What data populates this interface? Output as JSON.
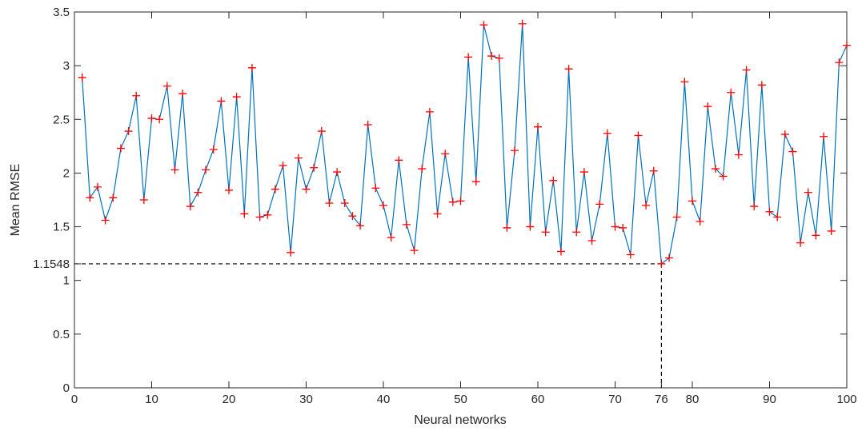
{
  "chart_data": {
    "type": "line",
    "xlabel": "Neural networks",
    "ylabel": "Mean RMSE",
    "xlim": [
      0,
      100
    ],
    "ylim": [
      0,
      3.5
    ],
    "x_ticks": [
      0,
      10,
      20,
      30,
      40,
      50,
      60,
      70,
      76,
      80,
      90,
      100
    ],
    "y_ticks": [
      0,
      0.5,
      1,
      1.5,
      2,
      2.5,
      3,
      3.5
    ],
    "y_tick_labels": [
      "0",
      "0.5",
      "1",
      "1.5",
      "2",
      "2.5",
      "3",
      "3.5"
    ],
    "reference_label": "1.1548",
    "reference_point": {
      "x": 76,
      "y": 1.1548
    },
    "grid": false,
    "line_color": "#0072BD",
    "marker_color": "#FF0000",
    "marker": "+",
    "series": [
      {
        "x": [
          1,
          2,
          3,
          4,
          5,
          6,
          7,
          8,
          9,
          10,
          11,
          12,
          13,
          14,
          15,
          16,
          17,
          18,
          19,
          20,
          21,
          22,
          23,
          24,
          25,
          26,
          27,
          28,
          29,
          30,
          31,
          32,
          33,
          34,
          35,
          36,
          37,
          38,
          39,
          40,
          41,
          42,
          43,
          44,
          45,
          46,
          47,
          48,
          49,
          50,
          51,
          52,
          53,
          54,
          55,
          56,
          57,
          58,
          59,
          60,
          61,
          62,
          63,
          64,
          65,
          66,
          67,
          68,
          69,
          70,
          71,
          72,
          73,
          74,
          75,
          76,
          77,
          78,
          79,
          80,
          81,
          82,
          83,
          84,
          85,
          86,
          87,
          88,
          89,
          90,
          91,
          92,
          93,
          94,
          95,
          96,
          97,
          98,
          99,
          100
        ],
        "values": [
          2.89,
          1.77,
          1.87,
          1.56,
          1.77,
          2.23,
          2.39,
          2.72,
          1.75,
          2.51,
          2.5,
          2.81,
          2.03,
          2.74,
          1.69,
          1.82,
          2.03,
          2.22,
          2.67,
          1.84,
          2.71,
          1.62,
          2.98,
          1.59,
          1.61,
          1.85,
          2.07,
          1.26,
          2.14,
          1.85,
          2.05,
          2.39,
          1.72,
          2.01,
          1.72,
          1.6,
          1.51,
          2.45,
          1.86,
          1.7,
          1.4,
          2.12,
          1.52,
          1.28,
          2.04,
          2.57,
          1.62,
          2.18,
          1.73,
          1.74,
          3.08,
          1.92,
          3.38,
          3.09,
          3.07,
          1.49,
          2.21,
          3.39,
          1.5,
          2.43,
          1.45,
          1.93,
          1.27,
          2.97,
          1.45,
          2.01,
          1.37,
          1.71,
          2.37,
          1.5,
          1.49,
          1.24,
          2.35,
          1.7,
          2.02,
          1.1548,
          1.21,
          1.59,
          2.85,
          1.74,
          1.55,
          2.62,
          2.04,
          1.97,
          2.75,
          2.17,
          2.96,
          1.69,
          2.82,
          1.64,
          1.59,
          2.36,
          2.2,
          1.35,
          1.82,
          1.42,
          2.34,
          1.46,
          3.03,
          3.19
        ]
      }
    ]
  }
}
